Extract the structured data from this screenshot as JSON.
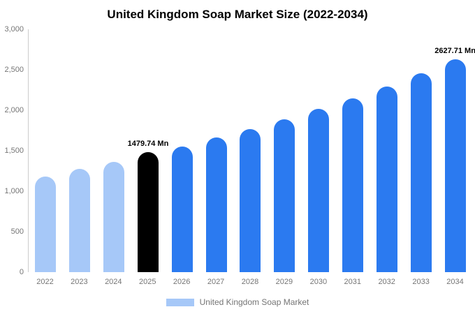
{
  "chart_data": {
    "type": "bar",
    "title": "United Kingdom Soap Market Size (2022-2034)",
    "categories": [
      "2022",
      "2023",
      "2024",
      "2025",
      "2026",
      "2027",
      "2028",
      "2029",
      "2030",
      "2031",
      "2032",
      "2033",
      "2034"
    ],
    "values": [
      1180,
      1275,
      1360,
      1479.74,
      1555,
      1660,
      1770,
      1890,
      2015,
      2150,
      2290,
      2455,
      2627.71
    ],
    "unit": "Mn",
    "ylim": [
      0,
      3000
    ],
    "yticks": [
      0,
      500,
      1000,
      1500,
      2000,
      2500,
      3000
    ],
    "ytick_labels": [
      "0",
      "500",
      "1,000",
      "1,500",
      "2,000",
      "2,500",
      "3,000"
    ],
    "bar_colors": [
      "#a6c8f8",
      "#a6c8f8",
      "#a6c8f8",
      "#000000",
      "#2b7af0",
      "#2b7af0",
      "#2b7af0",
      "#2b7af0",
      "#2b7af0",
      "#2b7af0",
      "#2b7af0",
      "#2b7af0",
      "#2b7af0"
    ],
    "annotations": [
      {
        "index": 3,
        "text": "1479.74 Mn"
      },
      {
        "index": 12,
        "text": "2627.71 Mn"
      }
    ],
    "legend": [
      {
        "label": "United Kingdom Soap Market",
        "color": "#a6c8f8"
      }
    ],
    "grid": false,
    "legend_position": "bottom"
  }
}
